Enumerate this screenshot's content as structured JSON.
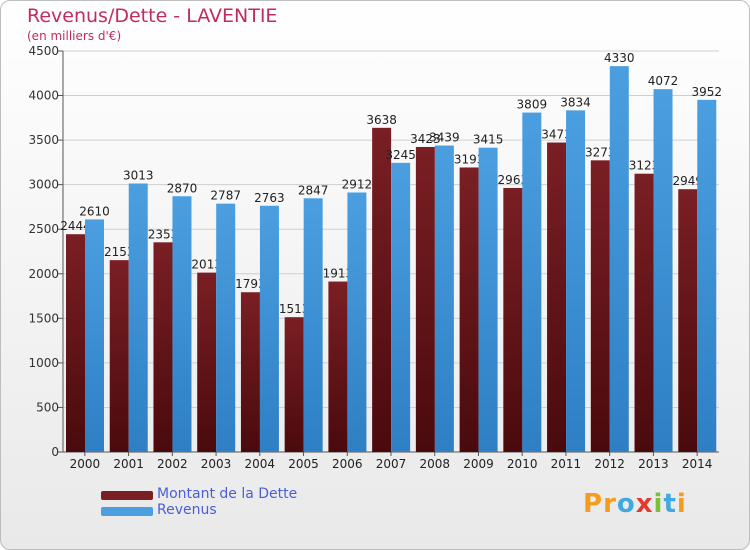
{
  "title": "Revenus/Dette - LAVENTIE",
  "subtitle": "(en milliers d'€)",
  "logo_text": "Proxiti",
  "colors": {
    "dette": "#7a1f24",
    "revenus": "#4b9fe0",
    "title": "#c22c5c",
    "legend": "#4a5fd6"
  },
  "legend": [
    {
      "label": "Montant de la Dette",
      "color": "#7a1f24"
    },
    {
      "label": "Revenus",
      "color": "#4b9fe0"
    }
  ],
  "chart_data": {
    "type": "bar",
    "title": "Revenus/Dette - LAVENTIE",
    "subtitle": "(en milliers d'€)",
    "categories": [
      "2000",
      "2001",
      "2002",
      "2003",
      "2004",
      "2005",
      "2006",
      "2007",
      "2008",
      "2009",
      "2010",
      "2011",
      "2012",
      "2013",
      "2014"
    ],
    "series": [
      {
        "name": "Montant de la Dette",
        "values": [
          2444,
          2153,
          2353,
          2013,
          1793,
          1513,
          1913,
          3638,
          3423,
          3193,
          2963,
          3473,
          3273,
          3123,
          2949
        ]
      },
      {
        "name": "Revenus",
        "values": [
          2610,
          3013,
          2870,
          2787,
          2763,
          2847,
          2912,
          3245,
          3439,
          3415,
          3809,
          3834,
          4330,
          4072,
          3952
        ]
      }
    ],
    "ylim": [
      0,
      4500
    ],
    "yticks": [
      0,
      500,
      1000,
      1500,
      2000,
      2500,
      3000,
      3500,
      4000,
      4500
    ],
    "grid": true,
    "legend_position": "bottom-left"
  }
}
